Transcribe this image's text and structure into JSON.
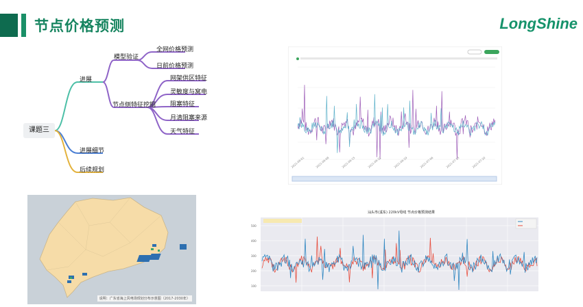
{
  "header": {
    "title": "节点价格预测",
    "logo": "LongShine"
  },
  "mindmap": {
    "root": "课题三",
    "branch1": "进展",
    "sub1": "模型验证",
    "sub1_items": [
      "全网价格预测",
      "日前价格预测"
    ],
    "sub2": "节点侧特征挖掘",
    "sub2_items": [
      "网架供区特征",
      "灵敏度与窝电",
      "阻塞特征",
      "月清阻塞来源",
      "天气特征"
    ],
    "branch2": "进展细节",
    "branch3": "后续规划",
    "colors": {
      "branch1": "#4bbfa6",
      "branch2": "#4a7fd4",
      "branch3": "#e3b23c"
    }
  },
  "map": {
    "caption": "说明：广东省海上风电场规划分布示意图（2017-2030年）",
    "land_color": "#f6dca8",
    "sea_color": "#c9d1d8"
  },
  "chart_top": {
    "colors": {
      "series_a": "#9b59b6",
      "series_b": "#5bb0c9"
    }
  },
  "chart_bottom": {
    "title": "汕头市(溪东) 220kV母线 节点价格预测结果",
    "colors": {
      "series_a": "#e74c3c",
      "series_b": "#2e86c1"
    }
  }
}
